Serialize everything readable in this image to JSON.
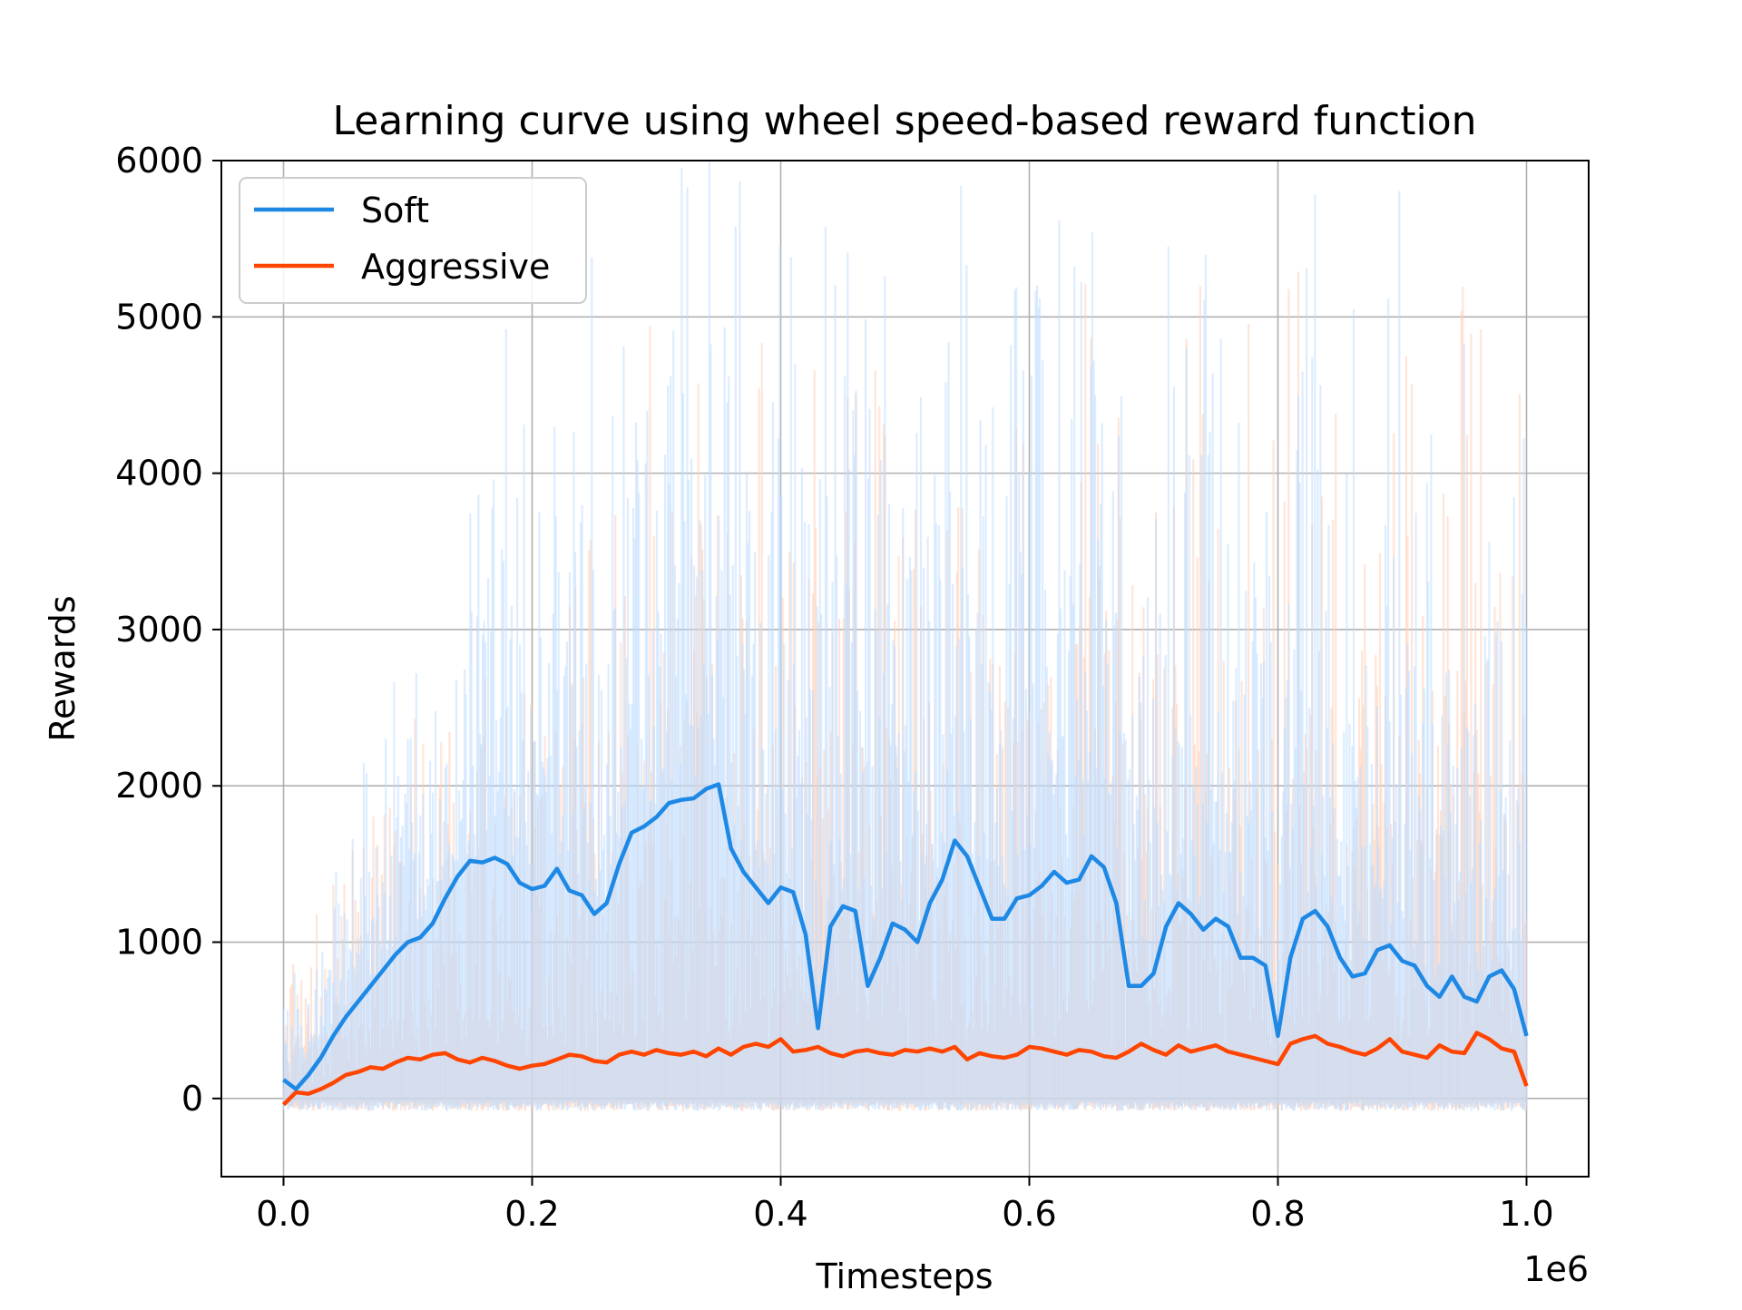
{
  "chart_data": {
    "type": "line",
    "title": "Learning curve using wheel speed-based reward function",
    "xlabel": "Timesteps",
    "ylabel": "Rewards",
    "x_offset_label": "1e6",
    "xlim": [
      -0.05,
      1.05
    ],
    "ylim": [
      -500,
      6000
    ],
    "x_ticks": [
      0.0,
      0.2,
      0.4,
      0.6,
      0.8,
      1.0
    ],
    "x_tick_labels": [
      "0.0",
      "0.2",
      "0.4",
      "0.6",
      "0.8",
      "1.0"
    ],
    "y_ticks": [
      0,
      1000,
      2000,
      3000,
      4000,
      5000,
      6000
    ],
    "y_tick_labels": [
      "0",
      "1000",
      "2000",
      "3000",
      "4000",
      "5000",
      "6000"
    ],
    "grid": true,
    "legend_position": "top-left",
    "series": [
      {
        "name": "Soft",
        "color": "#1e88e5",
        "raw_color": "#bcdcff",
        "x": [
          0.0,
          0.01,
          0.02,
          0.03,
          0.04,
          0.05,
          0.06,
          0.07,
          0.08,
          0.09,
          0.1,
          0.11,
          0.12,
          0.13,
          0.14,
          0.15,
          0.16,
          0.17,
          0.18,
          0.19,
          0.2,
          0.21,
          0.22,
          0.23,
          0.24,
          0.25,
          0.26,
          0.27,
          0.28,
          0.29,
          0.3,
          0.31,
          0.32,
          0.33,
          0.34,
          0.35,
          0.36,
          0.37,
          0.38,
          0.39,
          0.4,
          0.41,
          0.42,
          0.43,
          0.44,
          0.45,
          0.46,
          0.47,
          0.48,
          0.49,
          0.5,
          0.51,
          0.52,
          0.53,
          0.54,
          0.55,
          0.56,
          0.57,
          0.58,
          0.59,
          0.6,
          0.61,
          0.62,
          0.63,
          0.64,
          0.65,
          0.66,
          0.67,
          0.68,
          0.69,
          0.7,
          0.71,
          0.72,
          0.73,
          0.74,
          0.75,
          0.76,
          0.77,
          0.78,
          0.79,
          0.8,
          0.81,
          0.82,
          0.83,
          0.84,
          0.85,
          0.86,
          0.87,
          0.88,
          0.89,
          0.9,
          0.91,
          0.92,
          0.93,
          0.94,
          0.95,
          0.96,
          0.97,
          0.98,
          0.99,
          1.0
        ],
        "values": [
          120,
          60,
          150,
          260,
          400,
          520,
          620,
          720,
          820,
          920,
          1000,
          1030,
          1120,
          1280,
          1420,
          1520,
          1510,
          1540,
          1500,
          1380,
          1340,
          1360,
          1470,
          1330,
          1300,
          1180,
          1250,
          1500,
          1700,
          1740,
          1800,
          1890,
          1910,
          1920,
          1980,
          2010,
          1600,
          1450,
          1350,
          1250,
          1350,
          1320,
          1050,
          450,
          1100,
          1230,
          1200,
          720,
          900,
          1120,
          1080,
          1000,
          1250,
          1400,
          1650,
          1550,
          1350,
          1150,
          1150,
          1280,
          1300,
          1360,
          1450,
          1380,
          1400,
          1550,
          1480,
          1250,
          720,
          720,
          800,
          1100,
          1250,
          1180,
          1080,
          1150,
          1100,
          900,
          900,
          850,
          400,
          900,
          1150,
          1200,
          1100,
          900,
          780,
          800,
          950,
          980,
          880,
          850,
          720,
          650,
          780,
          650,
          620,
          780,
          820,
          700,
          400
        ]
      },
      {
        "name": "Aggressive",
        "color": "#ff4500",
        "raw_color": "#ffcfb8",
        "x": [
          0.0,
          0.01,
          0.02,
          0.03,
          0.04,
          0.05,
          0.06,
          0.07,
          0.08,
          0.09,
          0.1,
          0.11,
          0.12,
          0.13,
          0.14,
          0.15,
          0.16,
          0.17,
          0.18,
          0.19,
          0.2,
          0.21,
          0.22,
          0.23,
          0.24,
          0.25,
          0.26,
          0.27,
          0.28,
          0.29,
          0.3,
          0.31,
          0.32,
          0.33,
          0.34,
          0.35,
          0.36,
          0.37,
          0.38,
          0.39,
          0.4,
          0.41,
          0.42,
          0.43,
          0.44,
          0.45,
          0.46,
          0.47,
          0.48,
          0.49,
          0.5,
          0.51,
          0.52,
          0.53,
          0.54,
          0.55,
          0.56,
          0.57,
          0.58,
          0.59,
          0.6,
          0.61,
          0.62,
          0.63,
          0.64,
          0.65,
          0.66,
          0.67,
          0.68,
          0.69,
          0.7,
          0.71,
          0.72,
          0.73,
          0.74,
          0.75,
          0.76,
          0.77,
          0.78,
          0.79,
          0.8,
          0.81,
          0.82,
          0.83,
          0.84,
          0.85,
          0.86,
          0.87,
          0.88,
          0.89,
          0.9,
          0.91,
          0.92,
          0.93,
          0.94,
          0.95,
          0.96,
          0.97,
          0.98,
          0.99,
          1.0
        ],
        "values": [
          -40,
          40,
          30,
          60,
          100,
          150,
          170,
          200,
          190,
          230,
          260,
          250,
          280,
          290,
          250,
          230,
          260,
          240,
          210,
          190,
          210,
          220,
          250,
          280,
          270,
          240,
          230,
          280,
          300,
          280,
          310,
          290,
          280,
          300,
          270,
          320,
          280,
          330,
          350,
          330,
          380,
          300,
          310,
          330,
          290,
          270,
          300,
          310,
          290,
          280,
          310,
          300,
          320,
          300,
          330,
          250,
          290,
          270,
          260,
          280,
          330,
          320,
          300,
          280,
          310,
          300,
          270,
          260,
          300,
          350,
          310,
          280,
          340,
          300,
          320,
          340,
          300,
          280,
          260,
          240,
          220,
          350,
          380,
          400,
          350,
          330,
          300,
          280,
          320,
          380,
          300,
          280,
          260,
          340,
          300,
          290,
          420,
          380,
          320,
          300,
          80
        ]
      }
    ]
  }
}
